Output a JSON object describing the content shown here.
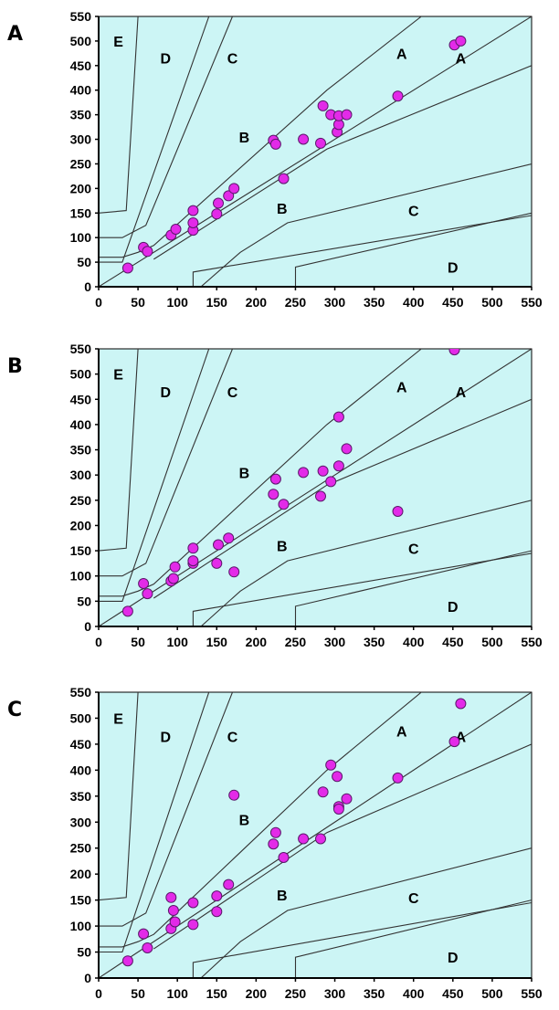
{
  "figure": {
    "background_color": "#ccf5f5",
    "point_color": "#e32ae8",
    "point_stroke": "#5a1a6a",
    "line_color": "#333333"
  },
  "chart_data": [
    {
      "type": "scatter",
      "panel_label": "A",
      "xlim": [
        0,
        550
      ],
      "ylim": [
        0,
        550
      ],
      "xticks": [
        "0",
        "50",
        "100",
        "150",
        "200",
        "250",
        "300",
        "350",
        "400",
        "450",
        "500",
        "550"
      ],
      "yticks": [
        "0",
        "50",
        "100",
        "150",
        "200",
        "250",
        "300",
        "350",
        "400",
        "450",
        "500",
        "550"
      ],
      "zone_labels": [
        {
          "text": "E",
          "x": 25,
          "y": 500
        },
        {
          "text": "D",
          "x": 85,
          "y": 465
        },
        {
          "text": "C",
          "x": 170,
          "y": 465
        },
        {
          "text": "A",
          "x": 385,
          "y": 475
        },
        {
          "text": "A",
          "x": 460,
          "y": 465
        },
        {
          "text": "B",
          "x": 185,
          "y": 305
        },
        {
          "text": "B",
          "x": 233,
          "y": 160
        },
        {
          "text": "C",
          "x": 400,
          "y": 155
        },
        {
          "text": "D",
          "x": 450,
          "y": 40
        }
      ],
      "points": [
        {
          "x": 37,
          "y": 38
        },
        {
          "x": 57,
          "y": 80
        },
        {
          "x": 62,
          "y": 72
        },
        {
          "x": 92,
          "y": 105
        },
        {
          "x": 98,
          "y": 117
        },
        {
          "x": 120,
          "y": 115
        },
        {
          "x": 120,
          "y": 130
        },
        {
          "x": 120,
          "y": 155
        },
        {
          "x": 150,
          "y": 148
        },
        {
          "x": 152,
          "y": 170
        },
        {
          "x": 165,
          "y": 185
        },
        {
          "x": 172,
          "y": 200
        },
        {
          "x": 222,
          "y": 298
        },
        {
          "x": 225,
          "y": 290
        },
        {
          "x": 235,
          "y": 220
        },
        {
          "x": 260,
          "y": 300
        },
        {
          "x": 282,
          "y": 292
        },
        {
          "x": 285,
          "y": 368
        },
        {
          "x": 295,
          "y": 350
        },
        {
          "x": 303,
          "y": 315
        },
        {
          "x": 305,
          "y": 330
        },
        {
          "x": 305,
          "y": 348
        },
        {
          "x": 315,
          "y": 350
        },
        {
          "x": 380,
          "y": 388
        },
        {
          "x": 452,
          "y": 492
        },
        {
          "x": 460,
          "y": 500
        }
      ]
    },
    {
      "type": "scatter",
      "panel_label": "B",
      "xlim": [
        0,
        550
      ],
      "ylim": [
        0,
        550
      ],
      "xticks": [
        "0",
        "50",
        "100",
        "150",
        "200",
        "250",
        "300",
        "350",
        "400",
        "450",
        "500",
        "550"
      ],
      "yticks": [
        "0",
        "50",
        "100",
        "150",
        "200",
        "250",
        "300",
        "350",
        "400",
        "450",
        "500",
        "550"
      ],
      "zone_labels": [
        {
          "text": "E",
          "x": 25,
          "y": 500
        },
        {
          "text": "D",
          "x": 85,
          "y": 465
        },
        {
          "text": "C",
          "x": 170,
          "y": 465
        },
        {
          "text": "A",
          "x": 385,
          "y": 475
        },
        {
          "text": "A",
          "x": 460,
          "y": 465
        },
        {
          "text": "B",
          "x": 185,
          "y": 305
        },
        {
          "text": "B",
          "x": 233,
          "y": 160
        },
        {
          "text": "C",
          "x": 400,
          "y": 155
        },
        {
          "text": "D",
          "x": 450,
          "y": 40
        }
      ],
      "points": [
        {
          "x": 37,
          "y": 30
        },
        {
          "x": 57,
          "y": 85
        },
        {
          "x": 62,
          "y": 65
        },
        {
          "x": 92,
          "y": 90
        },
        {
          "x": 95,
          "y": 95
        },
        {
          "x": 97,
          "y": 118
        },
        {
          "x": 120,
          "y": 125
        },
        {
          "x": 120,
          "y": 130
        },
        {
          "x": 120,
          "y": 155
        },
        {
          "x": 150,
          "y": 125
        },
        {
          "x": 152,
          "y": 162
        },
        {
          "x": 165,
          "y": 175
        },
        {
          "x": 172,
          "y": 108
        },
        {
          "x": 222,
          "y": 262
        },
        {
          "x": 225,
          "y": 292
        },
        {
          "x": 235,
          "y": 242
        },
        {
          "x": 260,
          "y": 305
        },
        {
          "x": 282,
          "y": 258
        },
        {
          "x": 285,
          "y": 308
        },
        {
          "x": 295,
          "y": 287
        },
        {
          "x": 305,
          "y": 318
        },
        {
          "x": 305,
          "y": 415
        },
        {
          "x": 315,
          "y": 352
        },
        {
          "x": 380,
          "y": 228
        },
        {
          "x": 452,
          "y": 548
        }
      ]
    },
    {
      "type": "scatter",
      "panel_label": "C",
      "xlim": [
        0,
        550
      ],
      "ylim": [
        0,
        550
      ],
      "xticks": [
        "0",
        "50",
        "100",
        "150",
        "200",
        "250",
        "300",
        "350",
        "400",
        "450",
        "500",
        "550"
      ],
      "yticks": [
        "0",
        "50",
        "100",
        "150",
        "200",
        "250",
        "300",
        "350",
        "400",
        "450",
        "500",
        "550"
      ],
      "zone_labels": [
        {
          "text": "E",
          "x": 25,
          "y": 500
        },
        {
          "text": "D",
          "x": 85,
          "y": 465
        },
        {
          "text": "C",
          "x": 170,
          "y": 465
        },
        {
          "text": "A",
          "x": 385,
          "y": 475
        },
        {
          "text": "A",
          "x": 460,
          "y": 465
        },
        {
          "text": "B",
          "x": 185,
          "y": 305
        },
        {
          "text": "B",
          "x": 233,
          "y": 160
        },
        {
          "text": "C",
          "x": 400,
          "y": 155
        },
        {
          "text": "D",
          "x": 450,
          "y": 40
        }
      ],
      "points": [
        {
          "x": 37,
          "y": 33
        },
        {
          "x": 57,
          "y": 85
        },
        {
          "x": 62,
          "y": 58
        },
        {
          "x": 92,
          "y": 95
        },
        {
          "x": 92,
          "y": 155
        },
        {
          "x": 95,
          "y": 130
        },
        {
          "x": 97,
          "y": 108
        },
        {
          "x": 120,
          "y": 103
        },
        {
          "x": 120,
          "y": 145
        },
        {
          "x": 150,
          "y": 128
        },
        {
          "x": 150,
          "y": 158
        },
        {
          "x": 165,
          "y": 180
        },
        {
          "x": 172,
          "y": 352
        },
        {
          "x": 222,
          "y": 258
        },
        {
          "x": 225,
          "y": 280
        },
        {
          "x": 235,
          "y": 232
        },
        {
          "x": 260,
          "y": 268
        },
        {
          "x": 282,
          "y": 268
        },
        {
          "x": 285,
          "y": 358
        },
        {
          "x": 295,
          "y": 410
        },
        {
          "x": 303,
          "y": 388
        },
        {
          "x": 305,
          "y": 330
        },
        {
          "x": 305,
          "y": 325
        },
        {
          "x": 315,
          "y": 345
        },
        {
          "x": 380,
          "y": 385
        },
        {
          "x": 452,
          "y": 455
        },
        {
          "x": 460,
          "y": 528
        }
      ]
    }
  ]
}
